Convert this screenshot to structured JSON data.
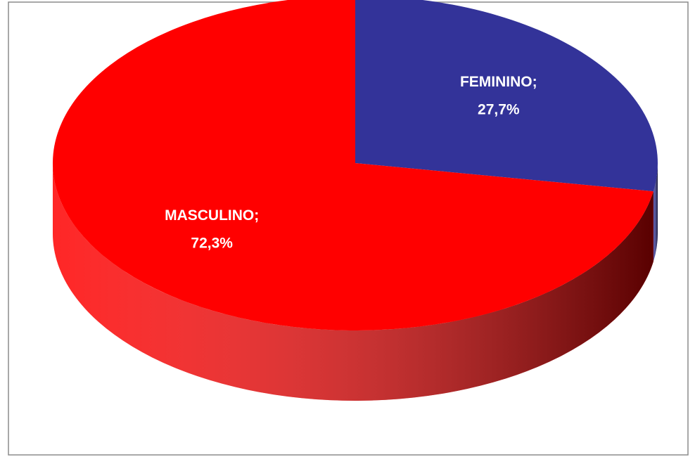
{
  "chart_data": {
    "type": "pie3d",
    "categories": [
      "FEMININO",
      "MASCULINO"
    ],
    "values": [
      27.7,
      72.3
    ],
    "value_labels": [
      "27,7%",
      "72,3%"
    ],
    "label_separator": ";",
    "colors": [
      "#333399",
      "#ff0000"
    ],
    "start_angle": 0,
    "direction": "clockwise"
  }
}
